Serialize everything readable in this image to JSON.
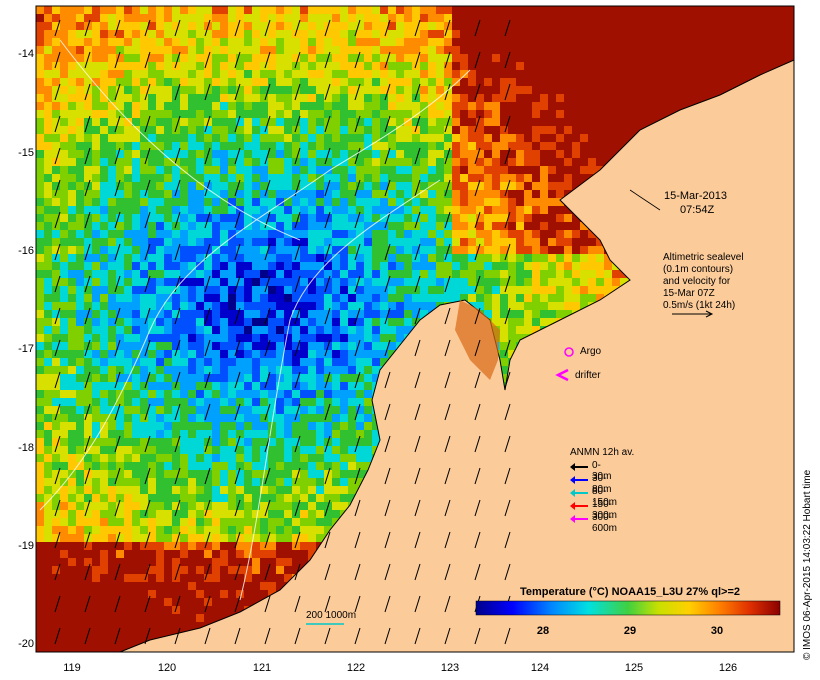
{
  "y_axis": {
    "ticks": [
      "-14",
      "-15",
      "-16",
      "-17",
      "-18",
      "-19",
      "-20"
    ]
  },
  "x_axis": {
    "ticks": [
      "119",
      "120",
      "121",
      "122",
      "123",
      "124",
      "125",
      "126"
    ]
  },
  "date_annotation": {
    "date": "15-Mar-2013",
    "time": "07:54Z"
  },
  "altimetry_note": {
    "lines": [
      "Altimetric sealevel",
      "(0.1m contours)",
      "and velocity for",
      "15-Mar 07Z",
      "0.5m/s (1kt 24h)"
    ]
  },
  "markers": {
    "argo_label": "Argo",
    "drifter_label": "drifter",
    "argo_color": "#ff00ff",
    "drifter_color": "#ff00ff"
  },
  "depth_legend": {
    "title": "ANMN 12h av.",
    "items": [
      {
        "label": "0-30m",
        "color": "#000000"
      },
      {
        "label": "30-80m",
        "color": "#0000ff"
      },
      {
        "label": "80-150m",
        "color": "#00c8c8"
      },
      {
        "label": "150-300m",
        "color": "#ff0000"
      },
      {
        "label": "300-600m",
        "color": "#ff00ff"
      }
    ]
  },
  "bathy_legend": {
    "label": "200  1000m"
  },
  "colorbar": {
    "title": "Temperature (°C) NOAA15_L3U 27% ql>=2",
    "ticks": [
      "28",
      "29",
      "30"
    ]
  },
  "credit": "© IMOS 06-Apr-2015 14:03:22 Hobart time",
  "colors": {
    "land": "#fccb9a",
    "sst_cold": "#00008b",
    "sst_warm": "#8b0000"
  }
}
